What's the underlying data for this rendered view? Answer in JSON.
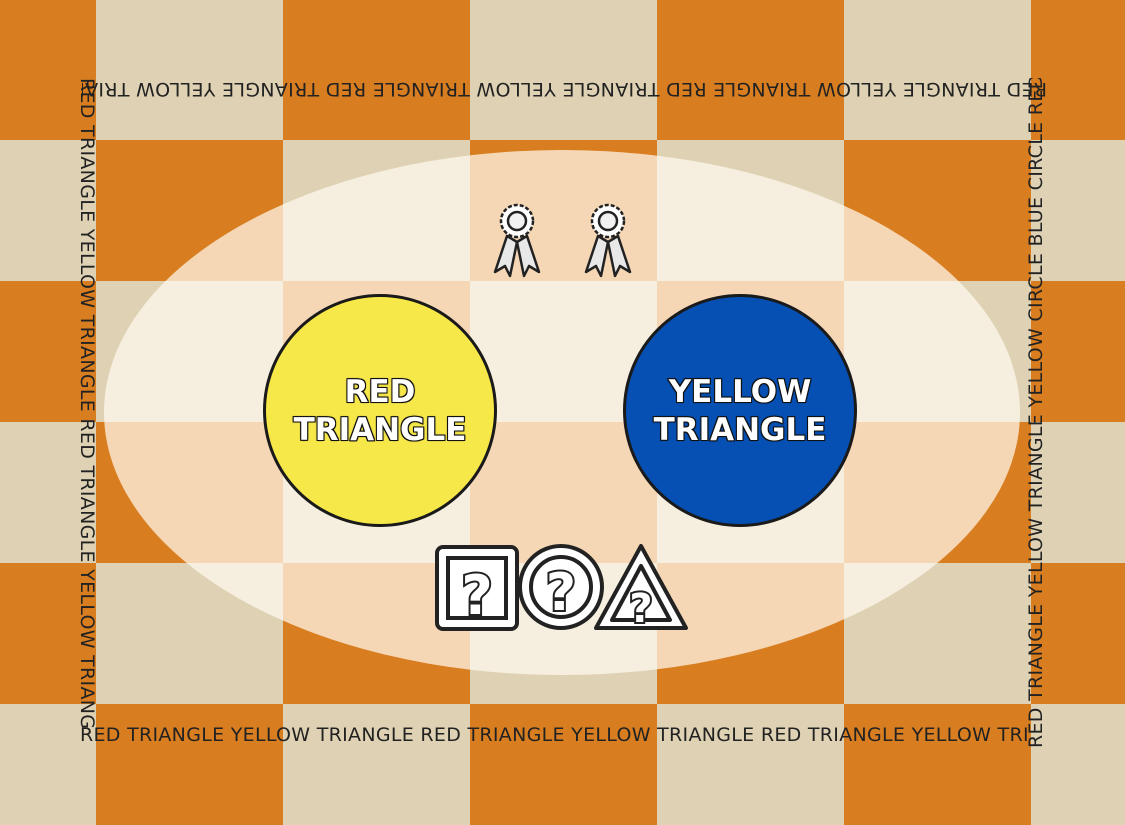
{
  "board": {
    "colors": {
      "orange": "#d97e20",
      "cream": "#dfd2b4",
      "overlay": "#fffaf0"
    }
  },
  "track": {
    "top_text": "RED TRIANGLE YELLOW TRIANGLE   RED TRIANGLE YELLOW TRIANGLE   RED TRIANGLE YELLOW TRIANGLE   RED",
    "bottom_text": "RED TRIANGLE YELLOW TRIANGLE   RED TRIANGLE YELLOW TRIANGLE   RED TRIANGLE YELLOW TRIANGLE   RED",
    "left_text": "RED TRIANGLE YELLOW TRIANGLE   RED TRIANGLE YELLOW TRIANGLE   RED",
    "right_text": "RED TRIANGLE YELLOW TRIANGLE YELLOW CIRCLE BLUE CIRCLE  RED TRIANGLE"
  },
  "tokens": {
    "left": {
      "line1": "RED",
      "line2": "TRIANGLE",
      "color": "#f7e84a"
    },
    "right": {
      "line1": "YELLOW",
      "line2": "TRIANGLE",
      "color": "#0650b4"
    }
  },
  "rewards": {
    "icon": "award-ribbon-icon",
    "count": 2
  },
  "mystery_shapes": [
    {
      "icon": "question-square-icon",
      "glyph": "?"
    },
    {
      "icon": "question-circle-icon",
      "glyph": "?"
    },
    {
      "icon": "question-triangle-icon",
      "glyph": "?"
    }
  ]
}
